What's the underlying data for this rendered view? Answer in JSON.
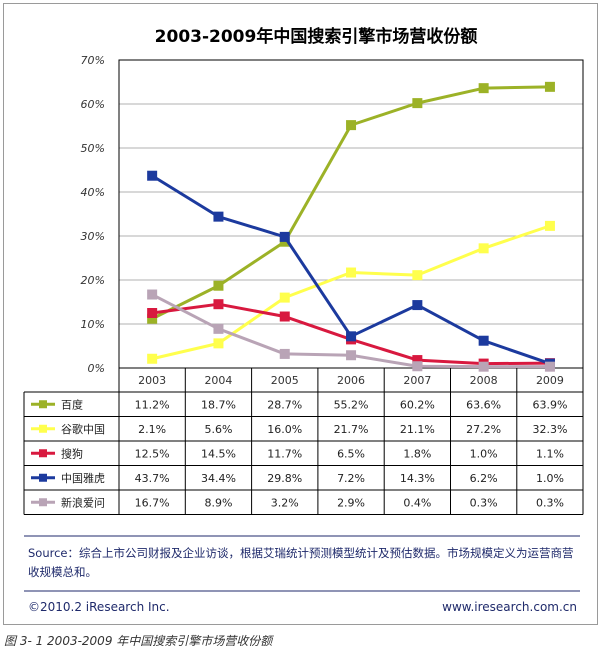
{
  "chart_data": {
    "type": "line",
    "title": "2003-2009年中国搜索引擎市场营收份额",
    "categories": [
      "2003",
      "2004",
      "2005",
      "2006",
      "2007",
      "2008",
      "2009"
    ],
    "y_ticks": [
      "0%",
      "10%",
      "20%",
      "30%",
      "40%",
      "50%",
      "60%",
      "70%"
    ],
    "ylim": [
      0,
      70
    ],
    "grid": true,
    "series": [
      {
        "name": "百度",
        "color": "#9cb227",
        "values": [
          11.2,
          18.7,
          28.7,
          55.2,
          60.2,
          63.6,
          63.9
        ],
        "labels": [
          "11.2%",
          "18.7%",
          "28.7%",
          "55.2%",
          "60.2%",
          "63.6%",
          "63.9%"
        ]
      },
      {
        "name": "谷歌中国",
        "color": "#ffff4d",
        "values": [
          2.1,
          5.6,
          16.0,
          21.7,
          21.1,
          27.2,
          32.3
        ],
        "labels": [
          "2.1%",
          "5.6%",
          "16.0%",
          "21.7%",
          "21.1%",
          "27.2%",
          "32.3%"
        ]
      },
      {
        "name": "搜狗",
        "color": "#d8193f",
        "values": [
          12.5,
          14.5,
          11.7,
          6.5,
          1.8,
          1.0,
          1.1
        ],
        "labels": [
          "12.5%",
          "14.5%",
          "11.7%",
          "6.5%",
          "1.8%",
          "1.0%",
          "1.1%"
        ]
      },
      {
        "name": "中国雅虎",
        "color": "#1c3a9e",
        "values": [
          43.7,
          34.4,
          29.8,
          7.2,
          14.3,
          6.2,
          1.0
        ],
        "labels": [
          "43.7%",
          "34.4%",
          "29.8%",
          "7.2%",
          "14.3%",
          "6.2%",
          "1.0%"
        ]
      },
      {
        "name": "新浪爱问",
        "color": "#b9a4b6",
        "values": [
          16.7,
          8.9,
          3.2,
          2.9,
          0.4,
          0.3,
          0.3
        ],
        "labels": [
          "16.7%",
          "8.9%",
          "3.2%",
          "2.9%",
          "0.4%",
          "0.3%",
          "0.3%"
        ]
      }
    ]
  },
  "footer": {
    "source": "Source：综合上市公司财报及企业访谈，根据艾瑞统计预测模型统计及预估数据。市场规模定义为运营商营收规模总和。",
    "copyright": "©2010.2 iResearch Inc.",
    "website": "www.iresearch.com.cn"
  },
  "caption": "图 3- 1 2003-2009 年中国搜索引擎市场营收份额"
}
